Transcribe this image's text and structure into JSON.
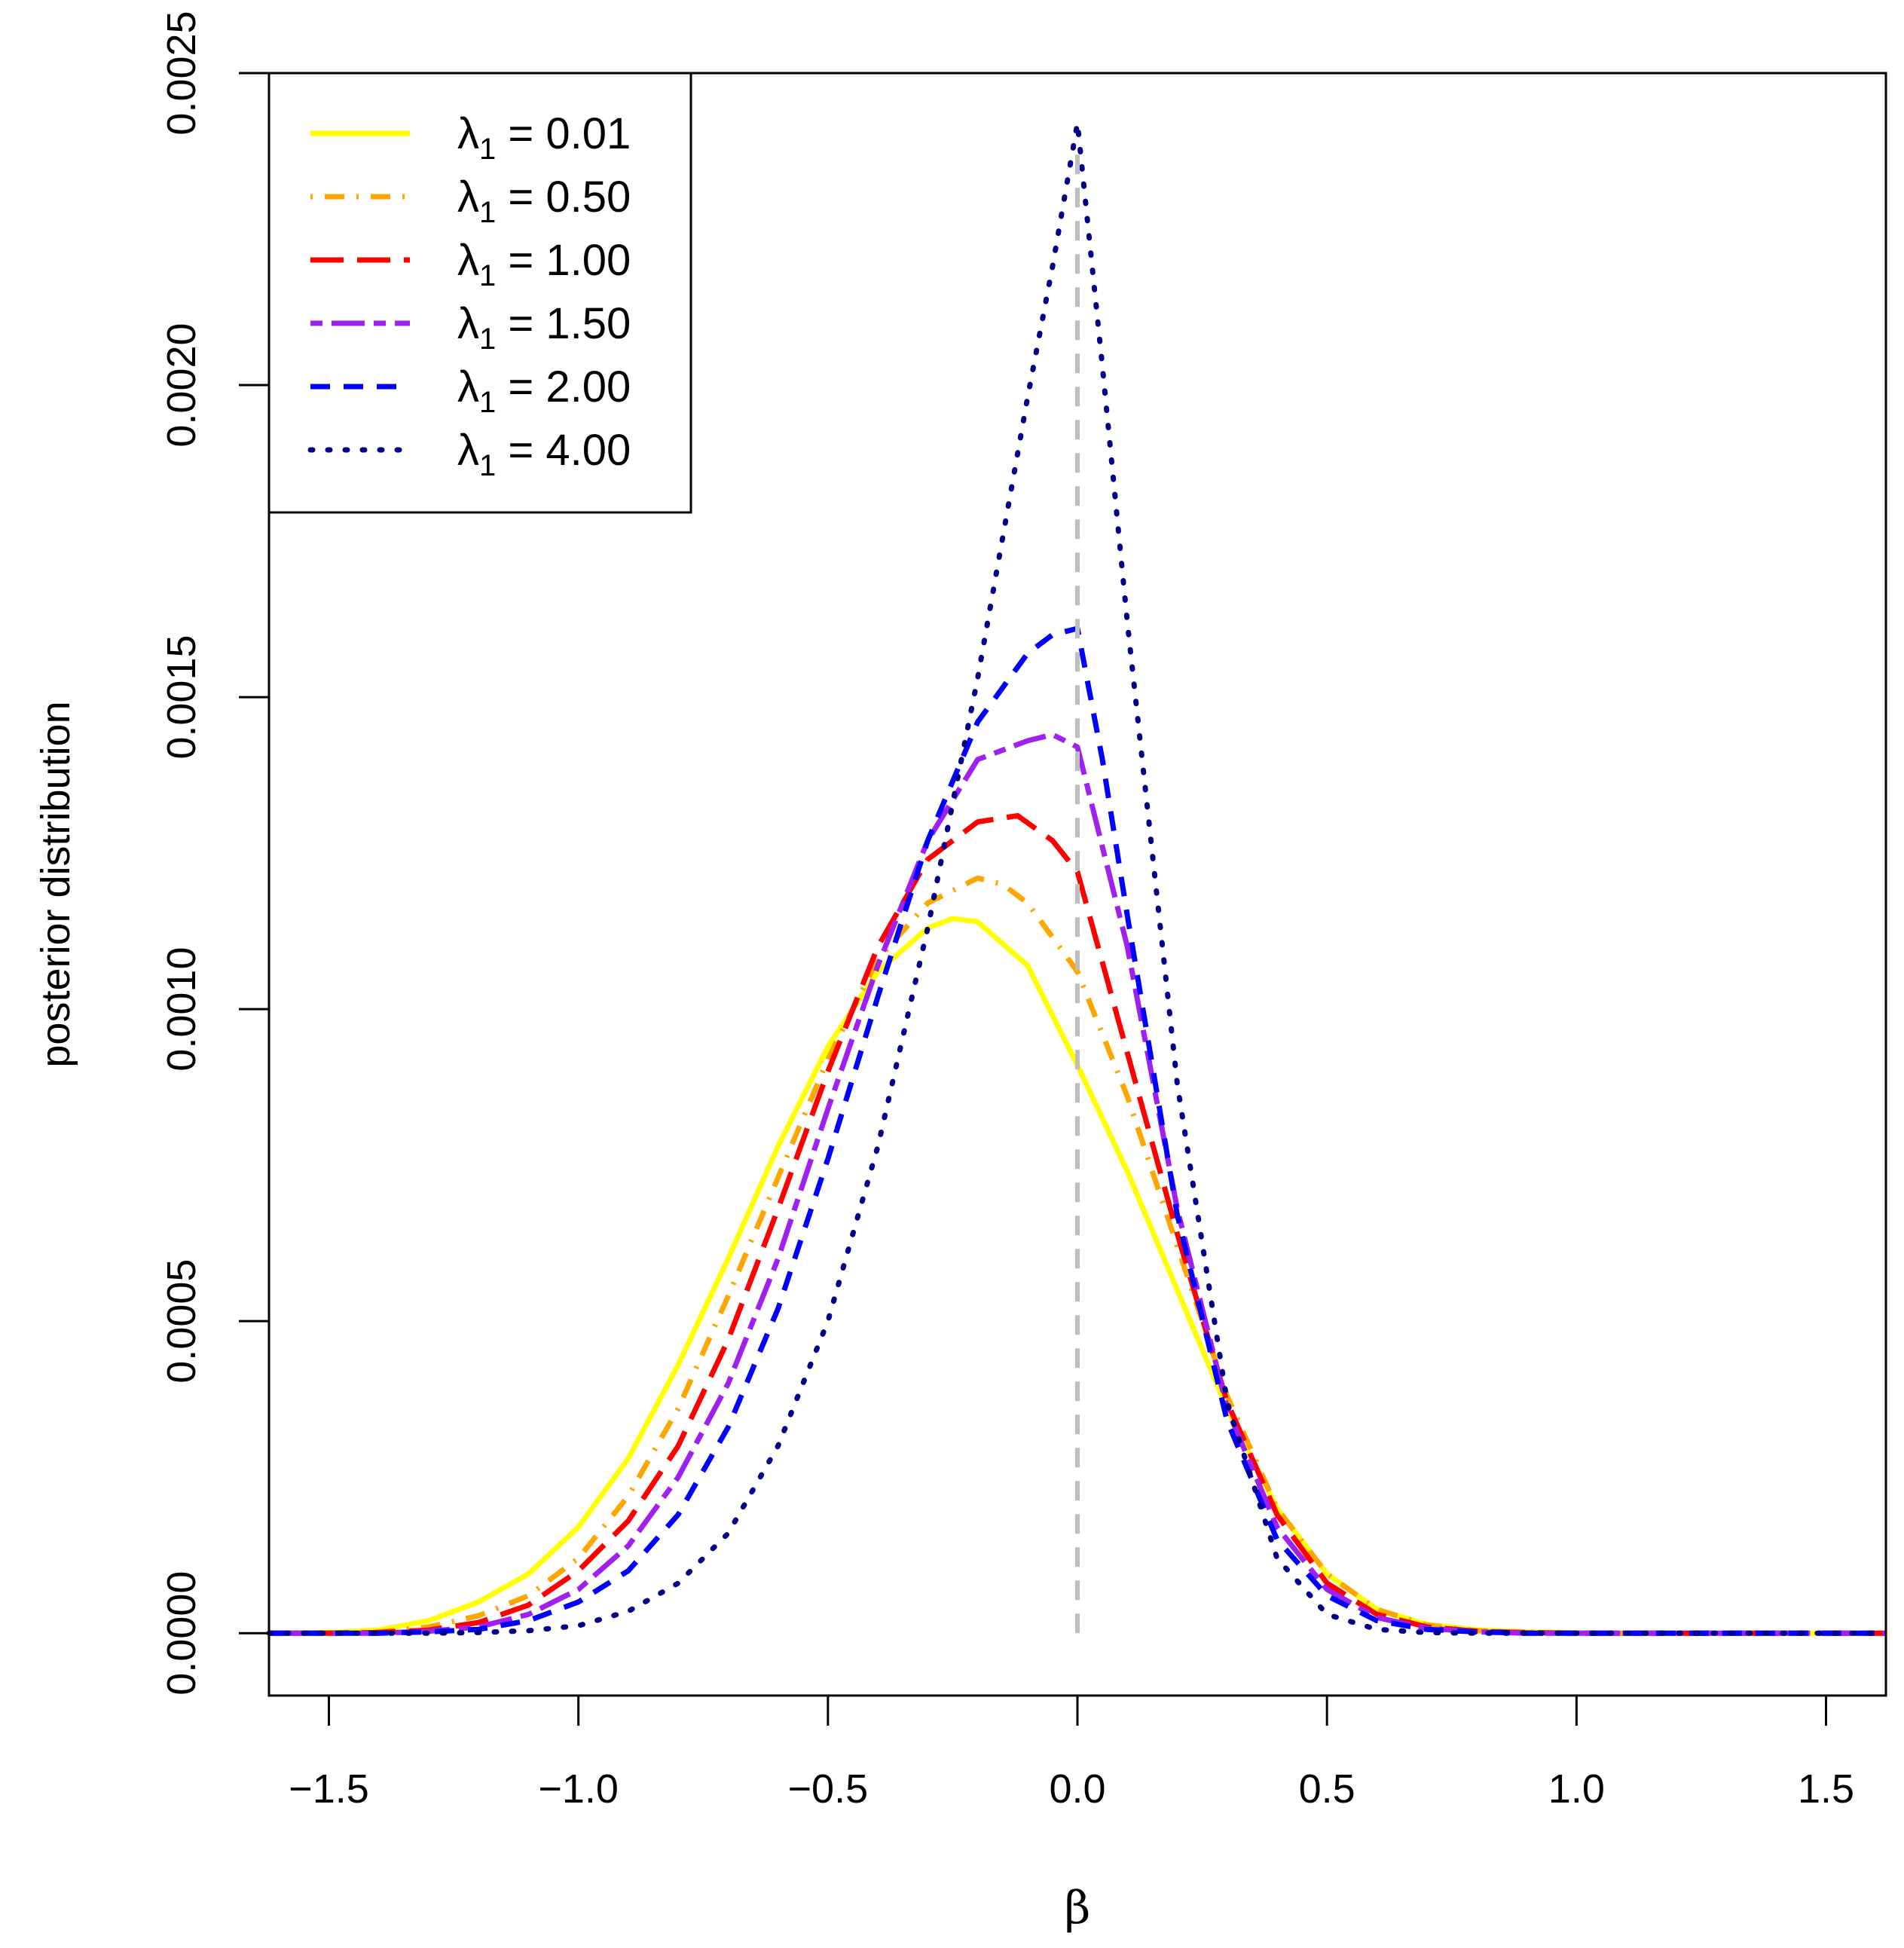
{
  "chart_data": {
    "type": "line",
    "title": "",
    "xlabel": "β",
    "ylabel": "posterior distribution",
    "xlim": [
      -1.62,
      1.62
    ],
    "ylim": [
      -0.0001,
      0.0025
    ],
    "xticks": [
      {
        "value": -1.5,
        "label": "−1.5"
      },
      {
        "value": -1.0,
        "label": "−1.0"
      },
      {
        "value": -0.5,
        "label": "−0.5"
      },
      {
        "value": 0.0,
        "label": "0.0"
      },
      {
        "value": 0.5,
        "label": "0.5"
      },
      {
        "value": 1.0,
        "label": "1.0"
      },
      {
        "value": 1.5,
        "label": "1.5"
      }
    ],
    "yticks": [
      {
        "value": 0.0,
        "label": "0.0000"
      },
      {
        "value": 0.0005,
        "label": "0.0005"
      },
      {
        "value": 0.001,
        "label": "0.0010"
      },
      {
        "value": 0.0015,
        "label": "0.0015"
      },
      {
        "value": 0.002,
        "label": "0.0020"
      },
      {
        "value": 0.0025,
        "label": "0.0025"
      }
    ],
    "grid": false,
    "legend_position": "top-left",
    "reference_line": {
      "x": 0.0,
      "color": "#bebebe",
      "style": "dashed"
    },
    "series": [
      {
        "label_prefix": "λ",
        "label_sub": "1",
        "label_value": "= 0.01",
        "color": "#ffff00",
        "style": "solid",
        "x": [
          -1.62,
          -1.5,
          -1.4,
          -1.3,
          -1.2,
          -1.1,
          -1.0,
          -0.9,
          -0.8,
          -0.7,
          -0.6,
          -0.5,
          -0.4,
          -0.3,
          -0.25,
          -0.2,
          -0.1,
          0.0,
          0.1,
          0.2,
          0.3,
          0.4,
          0.5,
          0.6,
          0.7,
          0.8,
          0.9,
          1.0,
          1.1,
          1.2,
          1.3,
          1.4,
          1.5,
          1.62
        ],
        "y": [
          0.0,
          1e-06,
          5e-06,
          2e-05,
          5e-05,
          9.5e-05,
          0.00017,
          0.00028,
          0.00043,
          0.0006,
          0.00078,
          0.00094,
          0.00106,
          0.00113,
          0.001145,
          0.00114,
          0.00107,
          0.00091,
          0.00074,
          0.00055,
          0.00036,
          0.0002,
          9.5e-05,
          3.8e-05,
          1.4e-05,
          5e-06,
          2e-06,
          5e-07,
          0.0,
          0.0,
          0.0,
          0.0,
          0.0,
          0.0
        ]
      },
      {
        "label_prefix": "λ",
        "label_sub": "1",
        "label_value": "= 0.50",
        "color": "#ffa500",
        "style": "dotdash",
        "x": [
          -1.62,
          -1.5,
          -1.4,
          -1.3,
          -1.2,
          -1.1,
          -1.0,
          -0.9,
          -0.8,
          -0.7,
          -0.6,
          -0.5,
          -0.4,
          -0.3,
          -0.2,
          -0.15,
          -0.1,
          0.0,
          0.1,
          0.2,
          0.3,
          0.4,
          0.5,
          0.6,
          0.7,
          0.8,
          0.9,
          1.0,
          1.2,
          1.4,
          1.62
        ],
        "y": [
          0.0,
          0.0,
          2e-06,
          1e-05,
          2.8e-05,
          6e-05,
          0.00012,
          0.00022,
          0.00036,
          0.00054,
          0.00073,
          0.00092,
          0.00108,
          0.00117,
          0.00121,
          0.0012,
          0.00117,
          0.00106,
          0.00086,
          0.00062,
          0.00038,
          0.0002,
          9.5e-05,
          3.8e-05,
          1.3e-05,
          4e-06,
          1e-06,
          0.0,
          0.0,
          0.0,
          0.0
        ]
      },
      {
        "label_prefix": "λ",
        "label_sub": "1",
        "label_value": "= 1.00",
        "color": "#ff0000",
        "style": "longdash",
        "x": [
          -1.62,
          -1.5,
          -1.4,
          -1.3,
          -1.2,
          -1.1,
          -1.0,
          -0.9,
          -0.8,
          -0.7,
          -0.6,
          -0.5,
          -0.4,
          -0.3,
          -0.2,
          -0.12,
          -0.05,
          0.0,
          0.1,
          0.2,
          0.3,
          0.4,
          0.5,
          0.6,
          0.7,
          0.8,
          0.9,
          1.0,
          1.2,
          1.4,
          1.62
        ],
        "y": [
          0.0,
          0.0,
          1e-06,
          5e-06,
          1.7e-05,
          4.5e-05,
          0.0001,
          0.00018,
          0.0003,
          0.00047,
          0.00068,
          0.0009,
          0.0011,
          0.00124,
          0.0013,
          0.00131,
          0.00127,
          0.00122,
          0.00093,
          0.00064,
          0.00037,
          0.00019,
          8e-05,
          3e-05,
          1e-05,
          3e-06,
          1e-06,
          0.0,
          0.0,
          0.0,
          0.0
        ]
      },
      {
        "label_prefix": "λ",
        "label_sub": "1",
        "label_value": "= 1.50",
        "color": "#a020f0",
        "style": "twodash",
        "x": [
          -1.62,
          -1.5,
          -1.4,
          -1.3,
          -1.2,
          -1.1,
          -1.0,
          -0.9,
          -0.8,
          -0.7,
          -0.6,
          -0.5,
          -0.4,
          -0.3,
          -0.2,
          -0.1,
          -0.05,
          0.0,
          0.1,
          0.2,
          0.3,
          0.4,
          0.5,
          0.6,
          0.7,
          0.8,
          0.9,
          1.0,
          1.2,
          1.4,
          1.62
        ],
        "y": [
          0.0,
          0.0,
          0.0,
          3e-06,
          1e-05,
          3e-05,
          7e-05,
          0.00014,
          0.00025,
          0.0004,
          0.0006,
          0.00084,
          0.00107,
          0.00127,
          0.0014,
          0.00143,
          0.00144,
          0.00142,
          0.0011,
          0.00068,
          0.00036,
          0.00017,
          7e-05,
          2.5e-05,
          8e-06,
          2e-06,
          0.0,
          0.0,
          0.0,
          0.0,
          0.0
        ]
      },
      {
        "label_prefix": "λ",
        "label_sub": "1",
        "label_value": "= 2.00",
        "color": "#0000ff",
        "style": "dashed",
        "x": [
          -1.62,
          -1.5,
          -1.4,
          -1.3,
          -1.2,
          -1.1,
          -1.0,
          -0.9,
          -0.8,
          -0.7,
          -0.6,
          -0.5,
          -0.4,
          -0.3,
          -0.2,
          -0.1,
          -0.05,
          0.0,
          0.05,
          0.1,
          0.2,
          0.3,
          0.4,
          0.5,
          0.6,
          0.7,
          0.8,
          0.9,
          1.0,
          1.2,
          1.4,
          1.62
        ],
        "y": [
          0.0,
          0.0,
          0.0,
          2e-06,
          6e-06,
          2e-05,
          5e-05,
          0.0001,
          0.00019,
          0.00033,
          0.00052,
          0.00076,
          0.00102,
          0.00127,
          0.00146,
          0.00157,
          0.0016,
          0.00161,
          0.0014,
          0.00115,
          0.00067,
          0.00034,
          0.00015,
          6e-05,
          2e-05,
          6e-06,
          2e-06,
          0.0,
          0.0,
          0.0,
          0.0,
          0.0
        ]
      },
      {
        "label_prefix": "λ",
        "label_sub": "1",
        "label_value": "= 4.00",
        "color": "#00008b",
        "style": "dotted",
        "x": [
          -1.62,
          -1.5,
          -1.4,
          -1.3,
          -1.2,
          -1.1,
          -1.0,
          -0.9,
          -0.8,
          -0.7,
          -0.6,
          -0.5,
          -0.4,
          -0.3,
          -0.2,
          -0.1,
          -0.05,
          0.0,
          0.05,
          0.1,
          0.2,
          0.3,
          0.4,
          0.5,
          0.6,
          0.7,
          0.8,
          0.9,
          1.0,
          1.2,
          1.4,
          1.62
        ],
        "y": [
          0.0,
          0.0,
          0.0,
          0.0,
          1e-06,
          4e-06,
          1.2e-05,
          3.5e-05,
          8e-05,
          0.00016,
          0.0003,
          0.0005,
          0.00078,
          0.00113,
          0.00153,
          0.00198,
          0.00219,
          0.00242,
          0.00203,
          0.00162,
          0.00088,
          0.00037,
          0.00012,
          3e-05,
          6e-06,
          1e-06,
          0.0,
          0.0,
          0.0,
          0.0,
          0.0,
          0.0
        ]
      }
    ]
  }
}
